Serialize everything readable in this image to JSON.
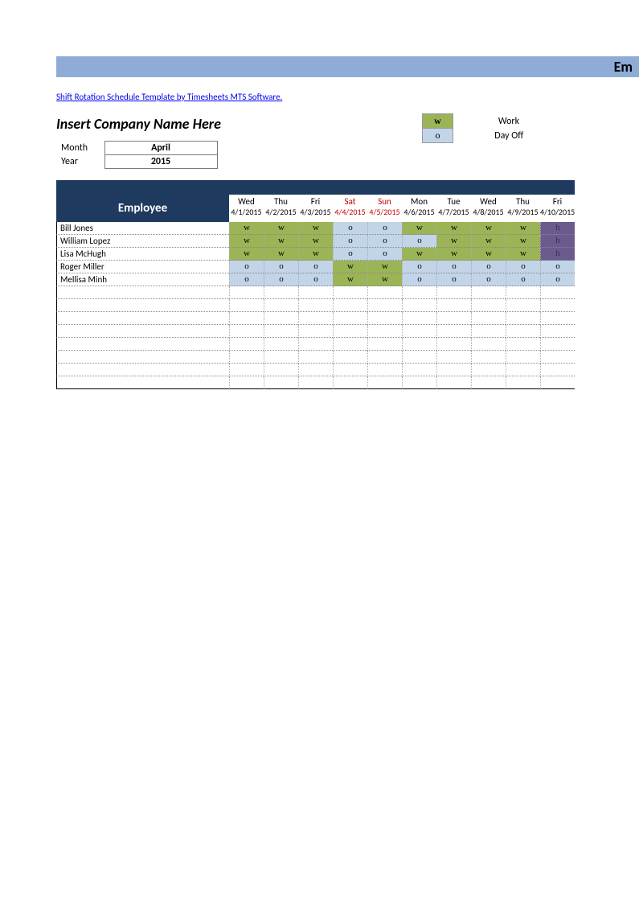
{
  "title_bar_text": "Em",
  "credit_link": "Shift Rotation Schedule Template by Timesheets MTS Software.",
  "company_placeholder": "Insert Company Name Here",
  "month_label": "Month",
  "month_value": "April",
  "year_label": "Year",
  "year_value": "2015",
  "legend": [
    {
      "code": "w",
      "label": "Work",
      "color": "#9bb456",
      "bold": true
    },
    {
      "code": "o",
      "label": "Day Off",
      "color": "#c2d4e8",
      "bold": false
    }
  ],
  "employee_header": "Employee",
  "colors": {
    "title_bar": "#8eacd6",
    "header_band": "#1f3a5f",
    "work": "#9bb456",
    "off": "#c2d4e8",
    "holiday": "#6b5a8e",
    "weekend_text": "#c00000"
  },
  "days": [
    {
      "name": "Wed",
      "date": "4/1/2015",
      "weekend": false
    },
    {
      "name": "Thu",
      "date": "4/2/2015",
      "weekend": false
    },
    {
      "name": "Fri",
      "date": "4/3/2015",
      "weekend": false
    },
    {
      "name": "Sat",
      "date": "4/4/2015",
      "weekend": true
    },
    {
      "name": "Sun",
      "date": "4/5/2015",
      "weekend": true
    },
    {
      "name": "Mon",
      "date": "4/6/2015",
      "weekend": false
    },
    {
      "name": "Tue",
      "date": "4/7/2015",
      "weekend": false
    },
    {
      "name": "Wed",
      "date": "4/8/2015",
      "weekend": false
    },
    {
      "name": "Thu",
      "date": "4/9/2015",
      "weekend": false
    },
    {
      "name": "Fri",
      "date": "4/10/2015",
      "weekend": false
    }
  ],
  "employees": [
    {
      "name": "Bill Jones",
      "shifts": [
        "w",
        "w",
        "w",
        "o",
        "o",
        "w",
        "w",
        "w",
        "w",
        "h"
      ]
    },
    {
      "name": "William Lopez",
      "shifts": [
        "w",
        "w",
        "w",
        "o",
        "o",
        "o",
        "w",
        "w",
        "w",
        "h"
      ]
    },
    {
      "name": "Lisa McHugh",
      "shifts": [
        "w",
        "w",
        "w",
        "o",
        "o",
        "w",
        "w",
        "w",
        "w",
        "h"
      ]
    },
    {
      "name": "Roger Miller",
      "shifts": [
        "o",
        "o",
        "o",
        "w",
        "w",
        "o",
        "o",
        "o",
        "o",
        "o"
      ]
    },
    {
      "name": "Mellisa Minh",
      "shifts": [
        "o",
        "o",
        "o",
        "w",
        "w",
        "o",
        "o",
        "o",
        "o",
        "o"
      ]
    }
  ],
  "empty_rows": 8
}
